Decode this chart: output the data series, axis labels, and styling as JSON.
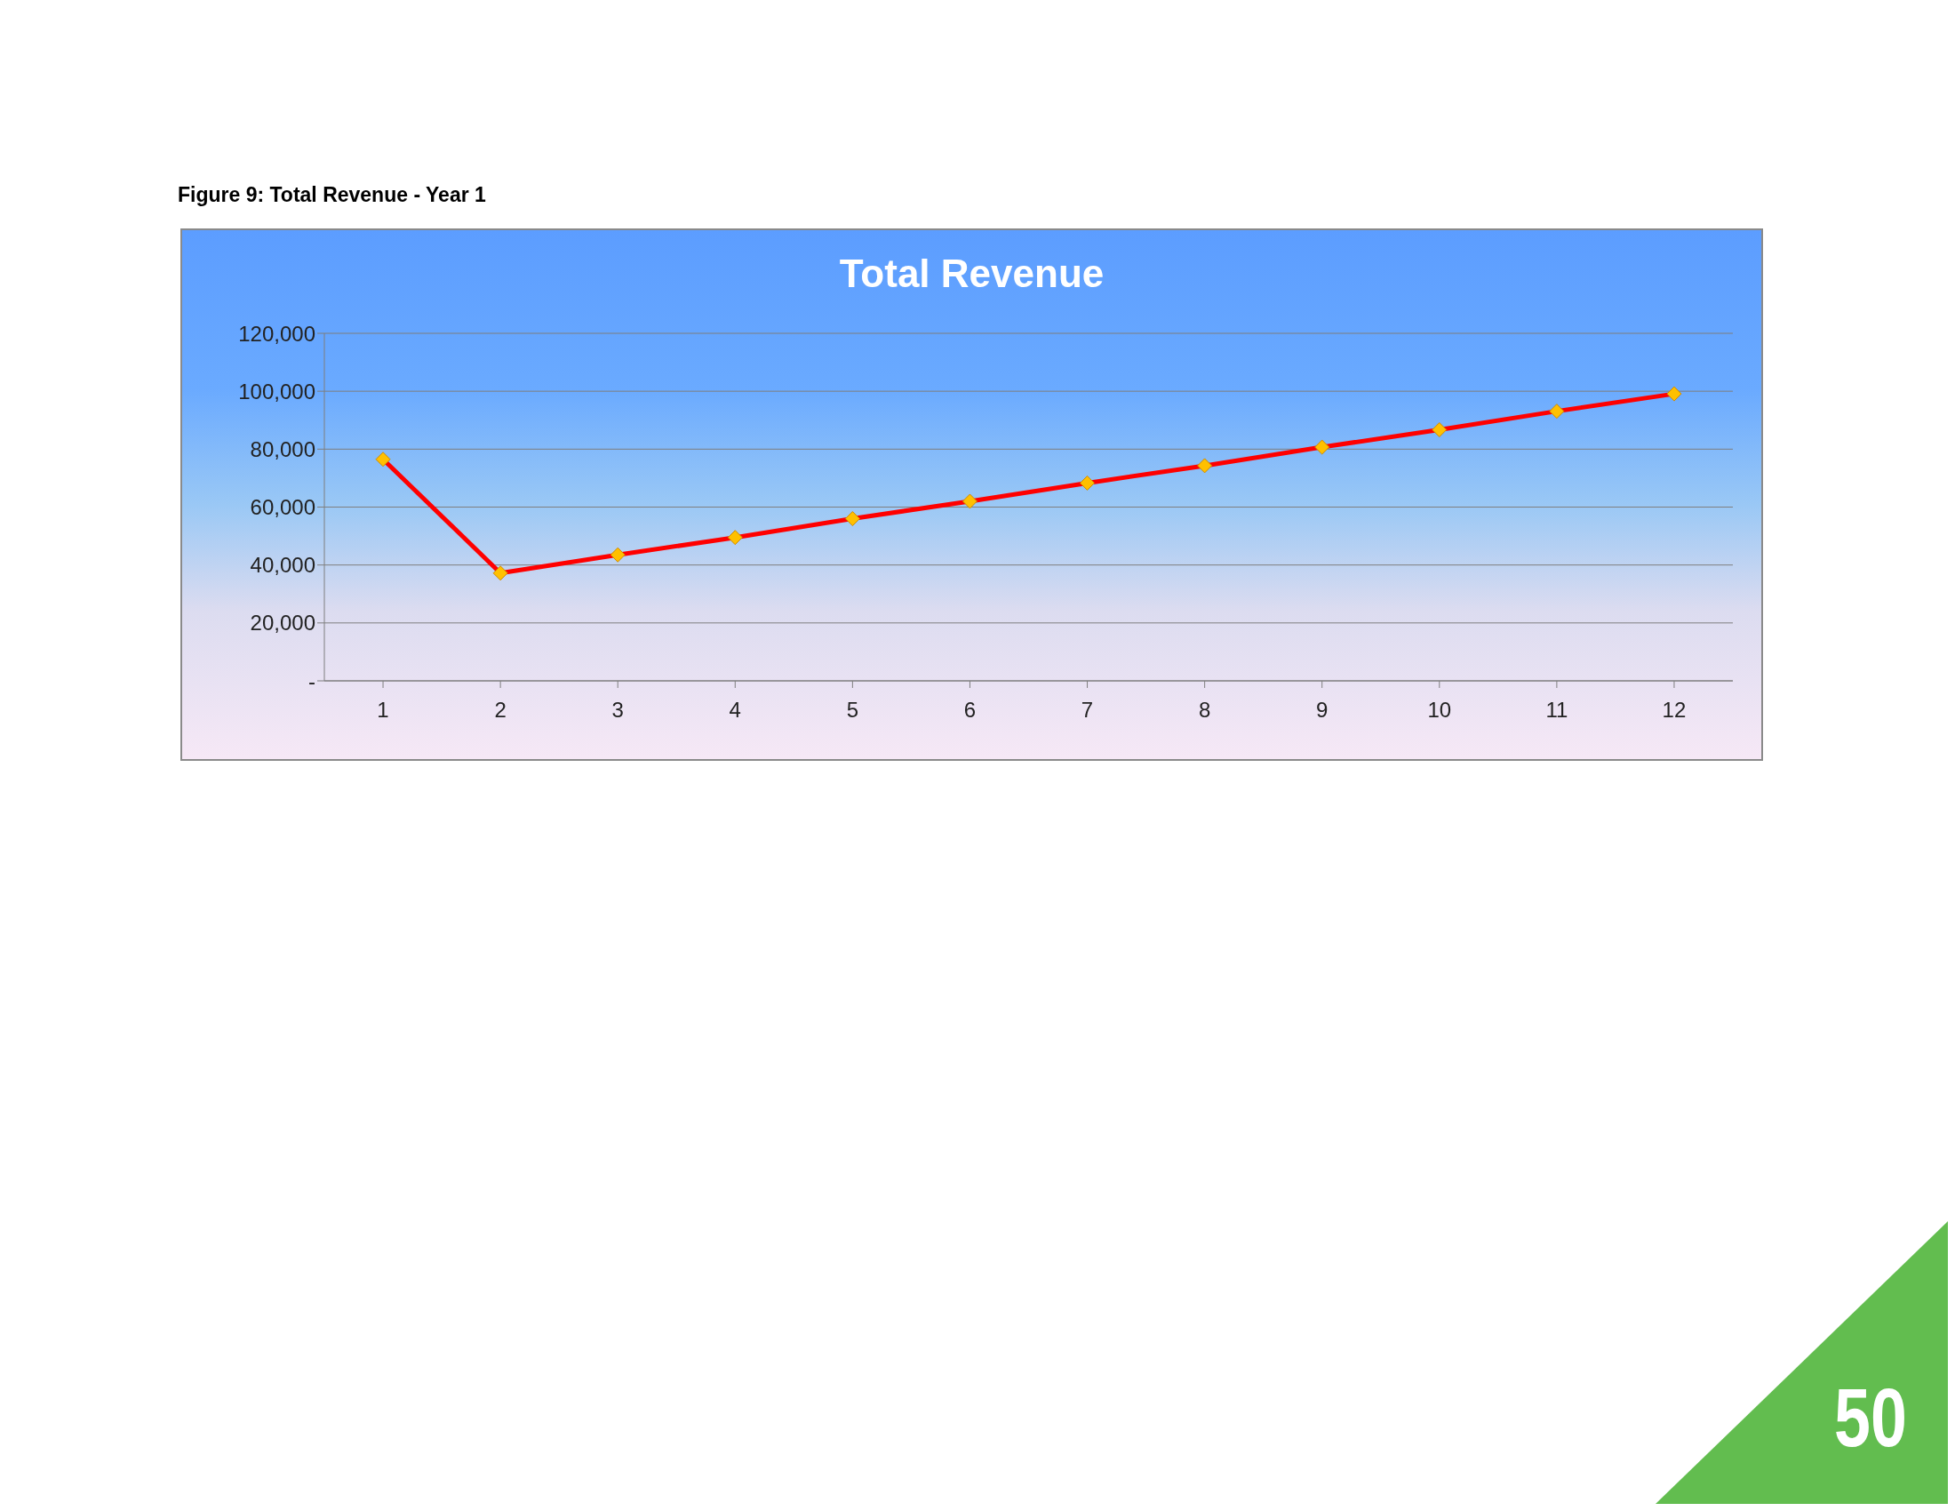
{
  "chart_data": {
    "type": "line",
    "title": "Total Revenue",
    "annotations": [
      "Figure 9: Total Revenue - Year 1",
      "50"
    ],
    "x": [
      1,
      2,
      3,
      4,
      5,
      6,
      7,
      8,
      9,
      10,
      11,
      12
    ],
    "xlim": [
      0.5,
      12.5
    ],
    "xticks": [
      1,
      2,
      3,
      4,
      5,
      6,
      7,
      8,
      9,
      10,
      11,
      12
    ],
    "series": [
      {
        "color": "#ff0000",
        "values": [
          76500,
          37200,
          43500,
          49500,
          56000,
          62000,
          68300,
          74300,
          80700,
          86700,
          93100,
          99100
        ]
      }
    ],
    "ylim": [
      0,
      120000
    ],
    "yticks": [
      {
        "value": 0,
        "label": "-"
      },
      {
        "value": 20000,
        "label": "20,000"
      },
      {
        "value": 40000,
        "label": "40,000"
      },
      {
        "value": 60000,
        "label": "60,000"
      },
      {
        "value": 80000,
        "label": "80,000"
      },
      {
        "value": 100000,
        "label": "100,000"
      },
      {
        "value": 120000,
        "label": "120,000"
      }
    ],
    "grid": "y",
    "marker": "diamond",
    "line_style": "solid"
  }
}
